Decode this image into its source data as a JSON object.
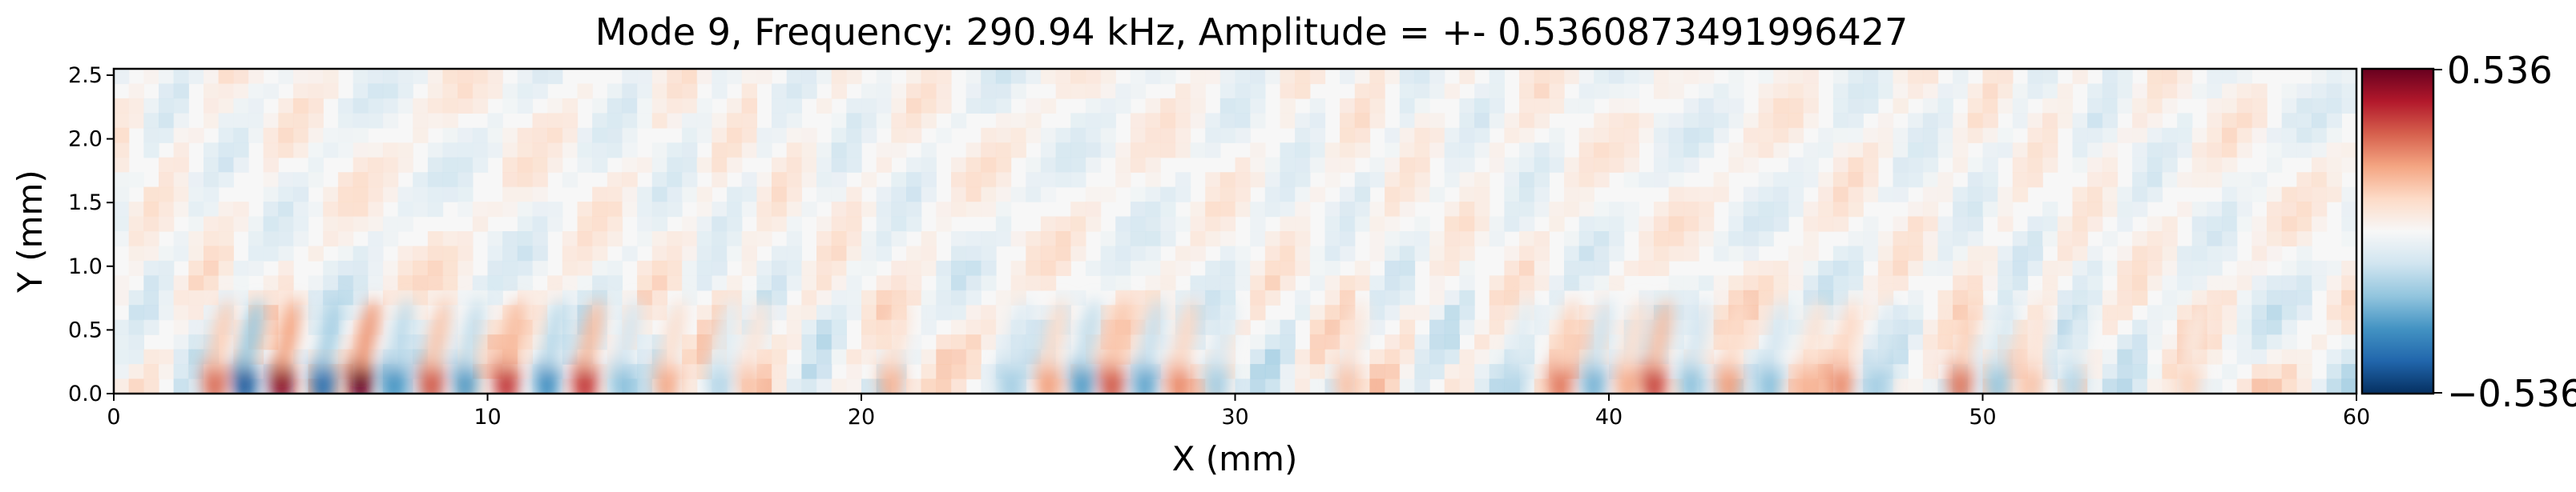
{
  "chart_data": {
    "type": "heatmap",
    "title": "Mode 9, Frequency: 290.94 kHz, Amplitude = +- 0.5360873491996427",
    "xlabel": "X (mm)",
    "ylabel": "Y (mm)",
    "xlim": [
      0,
      60
    ],
    "ylim": [
      0,
      2.55
    ],
    "x_ticks": [
      0,
      10,
      20,
      30,
      40,
      50,
      60
    ],
    "x_tick_labels": [
      "0",
      "10",
      "20",
      "30",
      "40",
      "50",
      "60"
    ],
    "y_ticks": [
      0.0,
      0.5,
      1.0,
      1.5,
      2.0,
      2.5
    ],
    "y_tick_labels": [
      "0.0",
      "0.5",
      "1.0",
      "1.5",
      "2.0",
      "2.5"
    ],
    "colormap": "RdBu_r",
    "colors": {
      "max": "#67001f",
      "high": "#d6604d",
      "mid": "#f7f7f7",
      "low": "#4393c3",
      "min": "#053061"
    },
    "colorbar": {
      "max_label": "0.536",
      "min_label": "−0.536",
      "vmin": -0.5360873491996427,
      "vmax": 0.5360873491996427
    },
    "near_wall_blobs": [
      {
        "x": 2.7,
        "value": 0.3
      },
      {
        "x": 3.5,
        "value": -0.45
      },
      {
        "x": 4.5,
        "value": 0.48
      },
      {
        "x": 5.6,
        "value": -0.4
      },
      {
        "x": 6.6,
        "value": 0.53
      },
      {
        "x": 7.5,
        "value": -0.32
      },
      {
        "x": 8.5,
        "value": 0.33
      },
      {
        "x": 9.4,
        "value": -0.3
      },
      {
        "x": 10.5,
        "value": 0.38
      },
      {
        "x": 11.6,
        "value": -0.33
      },
      {
        "x": 12.6,
        "value": 0.38
      },
      {
        "x": 13.6,
        "value": -0.22
      },
      {
        "x": 14.8,
        "value": 0.2
      },
      {
        "x": 16.2,
        "value": -0.15
      },
      {
        "x": 17.0,
        "value": 0.15
      },
      {
        "x": 20.8,
        "value": 0.18
      },
      {
        "x": 24.0,
        "value": -0.18
      },
      {
        "x": 25.0,
        "value": 0.22
      },
      {
        "x": 25.9,
        "value": -0.3
      },
      {
        "x": 26.7,
        "value": 0.33
      },
      {
        "x": 27.6,
        "value": -0.28
      },
      {
        "x": 28.5,
        "value": 0.25
      },
      {
        "x": 29.5,
        "value": -0.18
      },
      {
        "x": 33.0,
        "value": 0.15
      },
      {
        "x": 37.5,
        "value": -0.15
      },
      {
        "x": 38.7,
        "value": 0.28
      },
      {
        "x": 39.6,
        "value": -0.25
      },
      {
        "x": 40.5,
        "value": 0.2
      },
      {
        "x": 41.2,
        "value": 0.36
      },
      {
        "x": 42.2,
        "value": -0.22
      },
      {
        "x": 43.2,
        "value": 0.22
      },
      {
        "x": 44.3,
        "value": -0.22
      },
      {
        "x": 45.3,
        "value": 0.18
      },
      {
        "x": 46.2,
        "value": 0.25
      },
      {
        "x": 47.2,
        "value": -0.18
      },
      {
        "x": 49.4,
        "value": 0.28
      },
      {
        "x": 50.4,
        "value": -0.2
      },
      {
        "x": 51.3,
        "value": 0.15
      },
      {
        "x": 52.4,
        "value": -0.15
      },
      {
        "x": 55.5,
        "value": 0.12
      }
    ]
  }
}
